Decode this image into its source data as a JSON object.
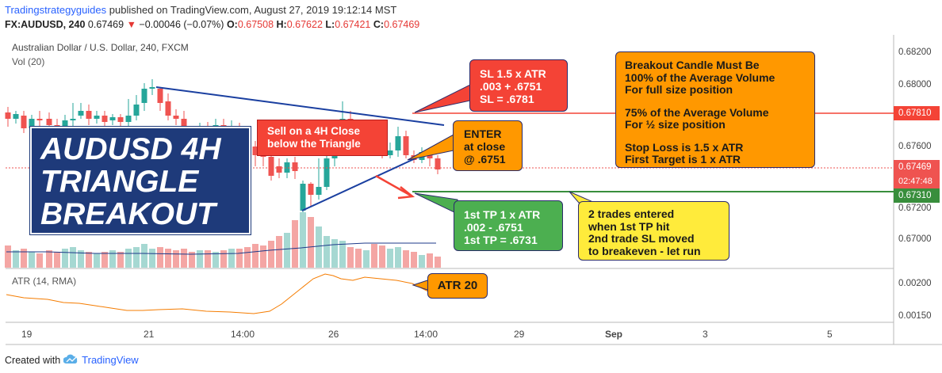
{
  "header": {
    "author": "Tradingstrategyguides",
    "published": "published on TradingView.com, August 27, 2019 19:12:14 MST",
    "symbol": "FX:AUDUSD, 240",
    "last": "0.67469",
    "change_arrow": "▼",
    "change": "−0.00046 (−0.07%)",
    "o_label": "O:",
    "o": "0.67508",
    "h_label": "H:",
    "h": "0.67622",
    "l_label": "L:",
    "l": "0.67421",
    "c_label": "C:",
    "c": "0.67469"
  },
  "chart": {
    "title": "Australian Dollar / U.S. Dollar, 240, FXCM",
    "volume_label": "Vol (20)",
    "atr_label": "ATR (14, RMA)"
  },
  "price_axis": {
    "labels": [
      "0.68200",
      "0.68000",
      "0.67600",
      "0.67200",
      "0.67000"
    ],
    "sl_tag": "0.67810",
    "current_tag": "0.67469",
    "countdown": "02:47:48",
    "tp_tag": "0.67310"
  },
  "atr_axis": {
    "labels": [
      "0.00200",
      "0.00150"
    ]
  },
  "time_axis": {
    "labels": [
      "19",
      "21",
      "14:00",
      "26",
      "14:00",
      "29",
      "Sep",
      "3",
      "5"
    ]
  },
  "annotations": {
    "title_lines": [
      "AUDUSD 4H",
      "TRIANGLE",
      "BREAKOUT"
    ],
    "sl_lines": [
      "SL 1.5 x ATR",
      ".003 + .6751",
      "SL = .6781"
    ],
    "sell_lines": [
      "Sell on a 4H Close",
      "below the Triangle"
    ],
    "enter_lines": [
      "ENTER",
      "at close",
      "@ .6751"
    ],
    "rules_lines": [
      "Breakout Candle Must Be",
      "100% of the Average Volume",
      "For full size position",
      "",
      "75% of the Average Volume",
      "For ½ size position",
      "",
      "Stop Loss is 1.5 x ATR",
      "First Target is 1 x ATR"
    ],
    "tp_lines": [
      "1st TP 1 x ATR",
      ".002 - .6751",
      "1st TP = .6731"
    ],
    "trades_lines": [
      "2 trades entered",
      "when 1st TP hit",
      "2nd trade SL moved",
      "to breakeven - let run"
    ],
    "atr_value": "ATR 20"
  },
  "footer": {
    "created_with": "Created with",
    "brand": "TradingView"
  },
  "colors": {
    "up": "#26a69a",
    "down": "#ef5350",
    "sl_line": "#f44336",
    "tp_line": "#388e3c",
    "title_bg": "#1e3a7a",
    "orange_box": "#ff9800",
    "red_box": "#f44336",
    "green_box": "#4caf50",
    "yellow_box": "#ffeb3b",
    "atr_line": "#f57c00",
    "trendline": "#1a3fa0"
  }
}
